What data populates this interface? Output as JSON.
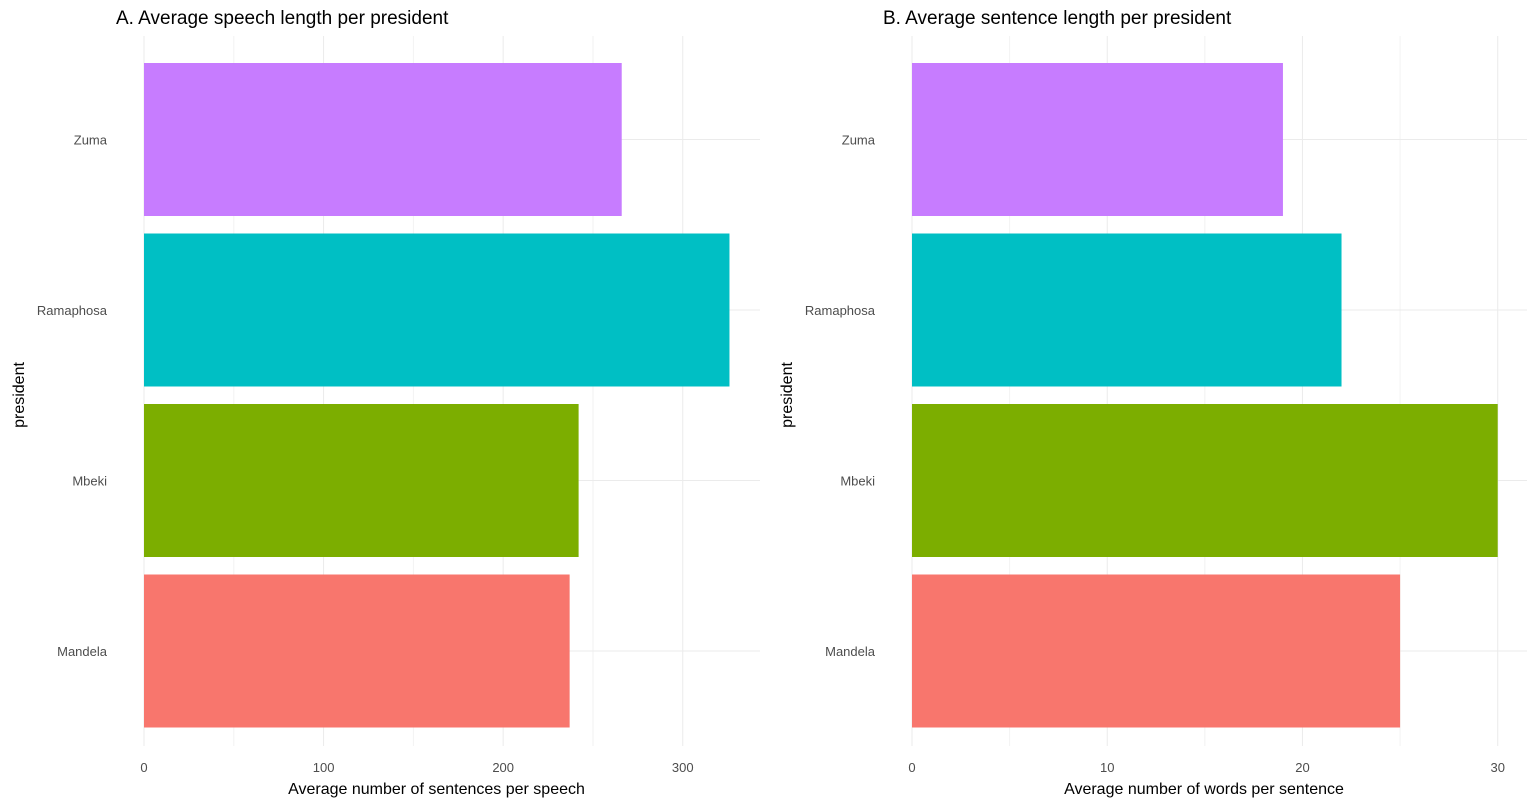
{
  "chart_data": [
    {
      "type": "bar",
      "orientation": "horizontal",
      "title": "A. Average speech length per president",
      "xlabel": "Average number of sentences per speech",
      "ylabel": "president",
      "categories": [
        "Mandela",
        "Mbeki",
        "Ramaphosa",
        "Zuma"
      ],
      "values": [
        237,
        242,
        326,
        266
      ],
      "colors": [
        "#F8766D",
        "#7CAE00",
        "#00BFC4",
        "#C77CFF"
      ],
      "xlim": [
        0,
        343
      ],
      "xticks": [
        0,
        100,
        200,
        300
      ],
      "grid": true,
      "legend": "none"
    },
    {
      "type": "bar",
      "orientation": "horizontal",
      "title": "B. Average sentence length per president",
      "xlabel": "Average number of words per sentence",
      "ylabel": "president",
      "categories": [
        "Mandela",
        "Mbeki",
        "Ramaphosa",
        "Zuma"
      ],
      "values": [
        25,
        30,
        22,
        19
      ],
      "colors": [
        "#F8766D",
        "#7CAE00",
        "#00BFC4",
        "#C77CFF"
      ],
      "xlim": [
        0,
        31.5
      ],
      "xticks": [
        0,
        10,
        20,
        30
      ],
      "grid": true,
      "legend": "none"
    }
  ]
}
